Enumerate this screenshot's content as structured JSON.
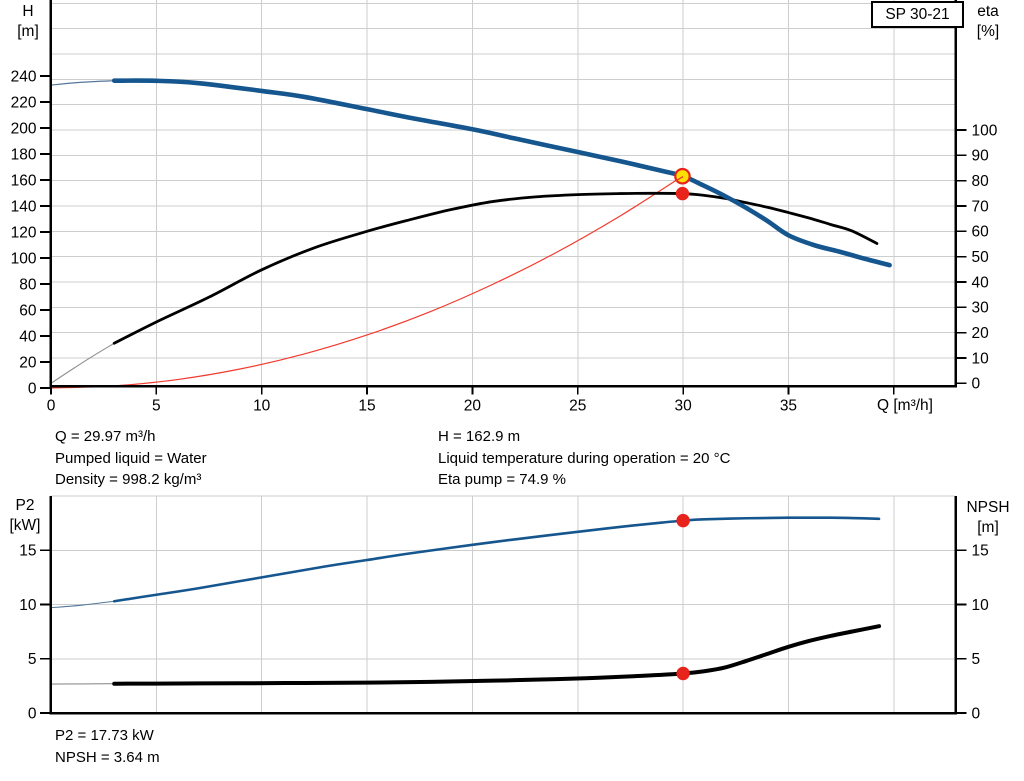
{
  "chart_data": [
    {
      "type": "line",
      "title": "SP 30-21",
      "x_axis": {
        "label": "Q [m³/h]",
        "min": 0,
        "max": 42.9,
        "tick_marks": [
          0,
          5,
          10,
          15,
          20,
          25,
          30,
          35,
          40
        ],
        "tick_labels": [
          "0",
          "5",
          "10",
          "15",
          "20",
          "25",
          "30",
          "35",
          ""
        ],
        "grid": true
      },
      "y_left": {
        "title_lines": [
          "H",
          "[m]"
        ],
        "min": 0,
        "max": 298,
        "ticks": [
          240,
          220,
          200,
          180,
          160,
          140,
          120,
          100,
          80,
          60,
          40,
          20,
          0
        ],
        "grid": false
      },
      "y_right": {
        "title_lines": [
          "eta",
          "[%]"
        ],
        "min": 0,
        "max": 152,
        "ticks": [
          100,
          90,
          80,
          70,
          60,
          50,
          40,
          30,
          20,
          10,
          0
        ],
        "grid": true
      },
      "series": [
        {
          "name": "system-curve",
          "axis": "left",
          "color": "#f23a2e",
          "width": 1.2,
          "points": [
            [
              0,
              0
            ],
            [
              3,
              1.6
            ],
            [
              6,
              6.5
            ],
            [
              9,
              14.7
            ],
            [
              12,
              26.1
            ],
            [
              15,
              40.8
            ],
            [
              18,
              58.7
            ],
            [
              21,
              80.0
            ],
            [
              24,
              104.4
            ],
            [
              27,
              132.2
            ],
            [
              29.97,
              162.9
            ]
          ]
        },
        {
          "name": "eta-curve",
          "axis": "right",
          "color": "#000000",
          "width": 2.8,
          "lead_in": {
            "color": "#8f8f8f",
            "width": 1.1,
            "points": [
              [
                0,
                0
              ],
              [
                1,
                5.5
              ],
              [
                2,
                10.8
              ],
              [
                3,
                15.8
              ]
            ]
          },
          "points": [
            [
              3,
              15.8
            ],
            [
              5,
              24.2
            ],
            [
              7.5,
              34
            ],
            [
              10,
              44.8
            ],
            [
              12.5,
              53.5
            ],
            [
              15,
              60
            ],
            [
              17,
              64.5
            ],
            [
              19,
              68.6
            ],
            [
              21,
              71.8
            ],
            [
              23,
              73.6
            ],
            [
              25,
              74.5
            ],
            [
              27,
              74.9
            ],
            [
              28.5,
              75
            ],
            [
              30,
              74.9
            ],
            [
              31,
              74.2
            ],
            [
              32,
              73
            ],
            [
              33,
              71.3
            ],
            [
              34,
              69.5
            ],
            [
              35,
              67.4
            ],
            [
              36,
              65.2
            ],
            [
              37,
              62.7
            ],
            [
              38,
              60.2
            ],
            [
              39.2,
              55.2
            ]
          ]
        },
        {
          "name": "head-curve",
          "axis": "left",
          "color": "#15568f",
          "width": 4.6,
          "lead_in": {
            "color": "#54789b",
            "width": 1.2,
            "points": [
              [
                0,
                233
              ],
              [
                1,
                234.6
              ],
              [
                2,
                235.7
              ],
              [
                3,
                236.4
              ]
            ]
          },
          "points": [
            [
              3,
              236.4
            ],
            [
              5,
              236.3
            ],
            [
              7,
              234.5
            ],
            [
              10,
              228.5
            ],
            [
              12,
              224
            ],
            [
              15,
              214.5
            ],
            [
              17,
              208
            ],
            [
              20,
              199
            ],
            [
              22,
              192
            ],
            [
              25,
              181.5
            ],
            [
              27,
              174.5
            ],
            [
              29,
              167
            ],
            [
              30,
              162.9
            ],
            [
              31,
              155.5
            ],
            [
              32,
              147.5
            ],
            [
              33,
              138.5
            ],
            [
              34,
              128.5
            ],
            [
              35,
              117.5
            ],
            [
              36.2,
              110
            ],
            [
              37.5,
              104.5
            ],
            [
              38.6,
              99.5
            ],
            [
              39.8,
              94.5
            ]
          ]
        }
      ],
      "markers": [
        {
          "name": "duty-point-marker",
          "axis": "left",
          "q": 29.97,
          "value": 162.9,
          "fill": "#ffdf00",
          "stroke": "#e8231c",
          "radius": 7.2,
          "stroke_width": 2.2
        },
        {
          "name": "eta-point-marker",
          "axis": "right",
          "q": 29.97,
          "value": 74.9,
          "fill": "#e8231c",
          "stroke": "#e8231c",
          "radius": 6.2,
          "stroke_width": 1
        }
      ],
      "annotations": {
        "left": [
          "Q = 29.97 m³/h",
          "Pumped liquid = Water",
          "Density = 998.2 kg/m³"
        ],
        "right": [
          "H = 162.9 m",
          "Liquid temperature during operation = 20 °C",
          "Eta pump = 74.9 %"
        ]
      }
    },
    {
      "type": "line",
      "x_axis": {
        "shared_with_top_chart": true,
        "grid": true
      },
      "y_left": {
        "title_lines": [
          "P2",
          "[kW]"
        ],
        "min": 0,
        "max": 19.9,
        "ticks": [
          15,
          10,
          5,
          0
        ],
        "grid": true
      },
      "y_right": {
        "title_lines": [
          "NPSH",
          "[m]"
        ],
        "min": 0,
        "max": 19.9,
        "ticks": [
          15,
          10,
          5,
          0
        ],
        "grid": true
      },
      "series": [
        {
          "name": "p2-curve",
          "axis": "left",
          "color": "#15568f",
          "width": 2.6,
          "lead_in": {
            "color": "#54789b",
            "width": 1.1,
            "points": [
              [
                0,
                9.7
              ],
              [
                1.5,
                9.95
              ],
              [
                3,
                10.3
              ]
            ]
          },
          "points": [
            [
              3,
              10.3
            ],
            [
              5,
              10.9
            ],
            [
              7,
              11.5
            ],
            [
              10,
              12.5
            ],
            [
              13,
              13.5
            ],
            [
              15,
              14.1
            ],
            [
              17,
              14.7
            ],
            [
              20,
              15.5
            ],
            [
              22,
              16.0
            ],
            [
              25,
              16.7
            ],
            [
              27,
              17.15
            ],
            [
              29,
              17.55
            ],
            [
              30,
              17.73
            ],
            [
              31,
              17.85
            ],
            [
              33,
              17.95
            ],
            [
              35,
              18.0
            ],
            [
              37,
              18.0
            ],
            [
              38,
              17.97
            ],
            [
              39.3,
              17.9
            ]
          ]
        },
        {
          "name": "npsh-curve",
          "axis": "right",
          "color": "#000000",
          "width": 4.0,
          "lead_in": {
            "color": "#8f8f8f",
            "width": 1.1,
            "points": [
              [
                0,
                2.67
              ],
              [
                1.5,
                2.68
              ],
              [
                3,
                2.7
              ]
            ]
          },
          "points": [
            [
              3,
              2.7
            ],
            [
              6,
              2.72
            ],
            [
              9,
              2.74
            ],
            [
              12,
              2.77
            ],
            [
              15,
              2.8
            ],
            [
              18,
              2.87
            ],
            [
              21,
              2.98
            ],
            [
              24,
              3.12
            ],
            [
              26,
              3.25
            ],
            [
              28,
              3.42
            ],
            [
              30,
              3.64
            ],
            [
              31,
              3.85
            ],
            [
              32,
              4.2
            ],
            [
              33,
              4.8
            ],
            [
              34,
              5.45
            ],
            [
              35,
              6.1
            ],
            [
              36,
              6.65
            ],
            [
              37,
              7.1
            ],
            [
              38,
              7.5
            ],
            [
              39.3,
              8.0
            ]
          ]
        }
      ],
      "markers": [
        {
          "name": "p2-point-marker",
          "axis": "left",
          "q": 30,
          "value": 17.73,
          "fill": "#e8231c",
          "stroke": "#e8231c",
          "radius": 6.2,
          "stroke_width": 1
        },
        {
          "name": "npsh-point-marker",
          "axis": "right",
          "q": 30,
          "value": 3.64,
          "fill": "#e8231c",
          "stroke": "#e8231c",
          "radius": 6.2,
          "stroke_width": 1
        }
      ],
      "annotations": {
        "left": [
          "P2 = 17.73 kW",
          "NPSH = 3.64 m"
        ]
      }
    }
  ],
  "colors": {
    "curve_blue": "#15568f",
    "curve_black": "#000000",
    "curve_red": "#f23a2e",
    "marker_red": "#e8231c",
    "marker_yellow": "#ffdf00",
    "grid": "#cdcdcd",
    "axis": "#000000"
  }
}
